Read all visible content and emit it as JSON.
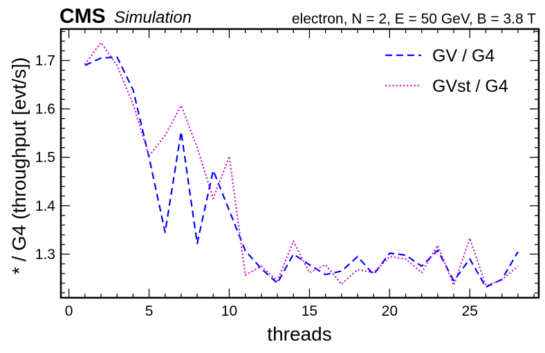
{
  "header": {
    "experiment": "CMS",
    "status": "Simulation",
    "info": "electron, N = 2, E = 50 GeV, B = 3.8 T"
  },
  "chart_data": {
    "type": "line",
    "title": "",
    "xlabel": "threads",
    "ylabel": "* / G4 (throughput [evt/s])",
    "xlim": [
      -0.5,
      29.3
    ],
    "ylim": [
      1.21,
      1.765
    ],
    "xticks": [
      0,
      5,
      10,
      15,
      20,
      25
    ],
    "yticks": [
      1.3,
      1.4,
      1.5,
      1.6,
      1.7
    ],
    "ytick_labels": [
      "1.3",
      "1.4",
      "1.5",
      "1.6",
      "1.7"
    ],
    "grid": false,
    "legend_position": "top-right",
    "x": [
      1,
      2,
      3,
      4,
      5,
      6,
      7,
      8,
      9,
      10,
      11,
      12,
      13,
      14,
      15,
      16,
      17,
      18,
      19,
      20,
      21,
      22,
      23,
      24,
      25,
      26,
      27,
      28
    ],
    "series": [
      {
        "name": "GV / G4",
        "color": "#0000ff",
        "style": "dashed",
        "values": [
          1.69,
          1.705,
          1.707,
          1.64,
          1.5,
          1.345,
          1.553,
          1.322,
          1.473,
          1.39,
          1.307,
          1.27,
          1.24,
          1.3,
          1.278,
          1.258,
          1.265,
          1.295,
          1.258,
          1.302,
          1.298,
          1.275,
          1.308,
          1.245,
          1.29,
          1.232,
          1.248,
          1.305
        ]
      },
      {
        "name": "GVst / G4",
        "color": "#cc00cc",
        "style": "dotted",
        "values": [
          1.692,
          1.737,
          1.69,
          1.61,
          1.503,
          1.545,
          1.607,
          1.52,
          1.415,
          1.502,
          1.257,
          1.275,
          1.245,
          1.327,
          1.262,
          1.278,
          1.238,
          1.268,
          1.262,
          1.295,
          1.29,
          1.262,
          1.318,
          1.236,
          1.333,
          1.235,
          1.247,
          1.275
        ]
      }
    ]
  }
}
